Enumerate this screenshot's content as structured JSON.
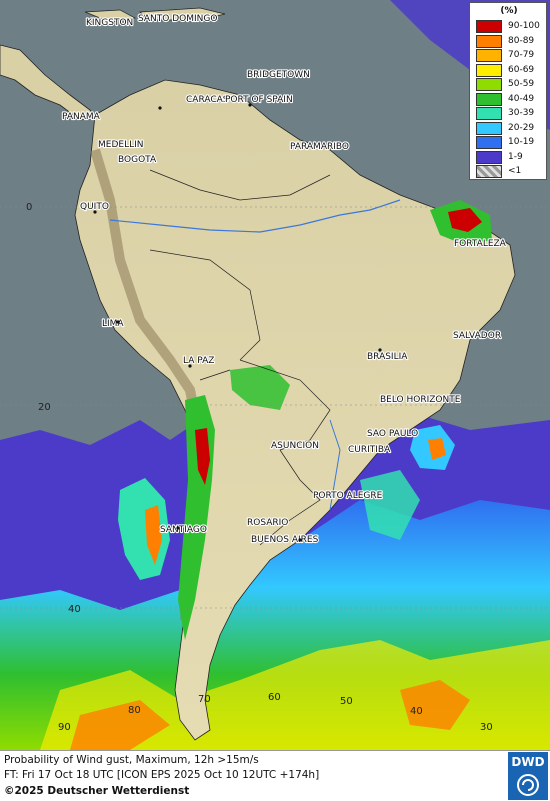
{
  "legend": {
    "unit": "(%)",
    "items": [
      {
        "label": "90-100",
        "color": "#cc0000"
      },
      {
        "label": "80-89",
        "color": "#ff7f00"
      },
      {
        "label": "70-79",
        "color": "#ffb300"
      },
      {
        "label": "60-69",
        "color": "#ffee00"
      },
      {
        "label": "50-59",
        "color": "#8fdc00"
      },
      {
        "label": "40-49",
        "color": "#2fbf2f"
      },
      {
        "label": "30-39",
        "color": "#33e0b0"
      },
      {
        "label": "20-29",
        "color": "#33c8ff"
      },
      {
        "label": "10-19",
        "color": "#2f6ff0"
      },
      {
        "label": "1-9",
        "color": "#4b3bc8"
      },
      {
        "label": "<1",
        "color": "#bfbfbf"
      }
    ]
  },
  "cities": [
    {
      "name": "KINGSTON"
    },
    {
      "name": "SANTO DOMINGO"
    },
    {
      "name": "BRIDGETOWN"
    },
    {
      "name": "CARACAS"
    },
    {
      "name": "PORT OF SPAIN"
    },
    {
      "name": "PANAMA"
    },
    {
      "name": "MEDELLIN"
    },
    {
      "name": "BOGOTA"
    },
    {
      "name": "PARAMARIBO"
    },
    {
      "name": "QUITO"
    },
    {
      "name": "FORTALEZA"
    },
    {
      "name": "LIMA"
    },
    {
      "name": "SALVADOR"
    },
    {
      "name": "BRASILIA"
    },
    {
      "name": "LA PAZ"
    },
    {
      "name": "BELO HORIZONTE"
    },
    {
      "name": "SAO PAULO"
    },
    {
      "name": "ASUNCION"
    },
    {
      "name": "CURITIBA"
    },
    {
      "name": "PORTO ALEGRE"
    },
    {
      "name": "SANTIAGO"
    },
    {
      "name": "ROSARIO"
    },
    {
      "name": "BUENOS AIRES"
    }
  ],
  "grid_labels": {
    "lat": [
      "0",
      "20",
      "40"
    ],
    "lon": [
      "90",
      "80",
      "70",
      "60",
      "50",
      "40",
      "30"
    ]
  },
  "footer": {
    "line1": "Probability of Wind gust, Maximum, 12h >15m/s",
    "line2": "FT: Fri 17 Oct 18 UTC [ICON EPS 2025 Oct 10 12UTC +174h]",
    "line3": "©2025 Deutscher Wetterdienst"
  },
  "logo": {
    "text": "DWD"
  }
}
